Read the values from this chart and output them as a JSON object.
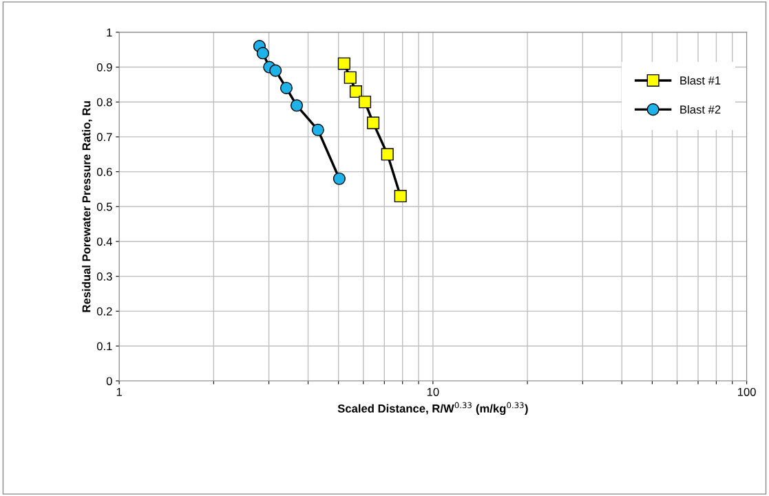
{
  "chart_data": {
    "type": "line",
    "xlabel": "Scaled Distance, R/W$^{0.33}$ (m/kg$^{0.33}$)",
    "ylabel": "Residual Porewater Pressure Ratio, Ru",
    "log": "x",
    "xlim": [
      1,
      100
    ],
    "ylim": [
      0,
      1
    ],
    "xticks": [
      1,
      {
        "value": 2,
        "label": null
      },
      {
        "value": 3,
        "label": null
      },
      {
        "value": 4,
        "label": null
      },
      {
        "value": 5,
        "label": null
      },
      {
        "value": 6,
        "label": null
      },
      {
        "value": 7,
        "label": null
      },
      {
        "value": 8,
        "label": null
      },
      {
        "value": 9,
        "label": null
      },
      10,
      {
        "value": 20,
        "label": null
      },
      {
        "value": 30,
        "label": null
      },
      {
        "value": 40,
        "label": null
      },
      {
        "value": 50,
        "label": null
      },
      {
        "value": 60,
        "label": null
      },
      {
        "value": 70,
        "label": null
      },
      {
        "value": 80,
        "label": null
      },
      {
        "value": 90,
        "label": null
      },
      100
    ],
    "yticks": [
      0,
      0.1,
      0.2,
      0.3,
      0.4,
      0.5,
      0.6,
      0.7,
      0.8,
      0.9,
      1
    ],
    "grid": true,
    "legend": "top right",
    "line_style": "solid",
    "series": [
      {
        "name": "Blast #1",
        "color": "#ffff00",
        "marker": "square",
        "x": [
          5.21,
          5.45,
          5.68,
          6.07,
          6.45,
          7.16,
          7.88
        ],
        "values": [
          0.91,
          0.87,
          0.83,
          0.8,
          0.74,
          0.65,
          0.53
        ]
      },
      {
        "name": "Blast #2",
        "color": "#1fb2e8",
        "marker": "circle",
        "x": [
          2.8,
          2.87,
          3.01,
          3.15,
          3.41,
          3.68,
          4.3,
          5.03
        ],
        "values": [
          0.96,
          0.94,
          0.9,
          0.89,
          0.84,
          0.79,
          0.72,
          0.58
        ]
      }
    ]
  }
}
